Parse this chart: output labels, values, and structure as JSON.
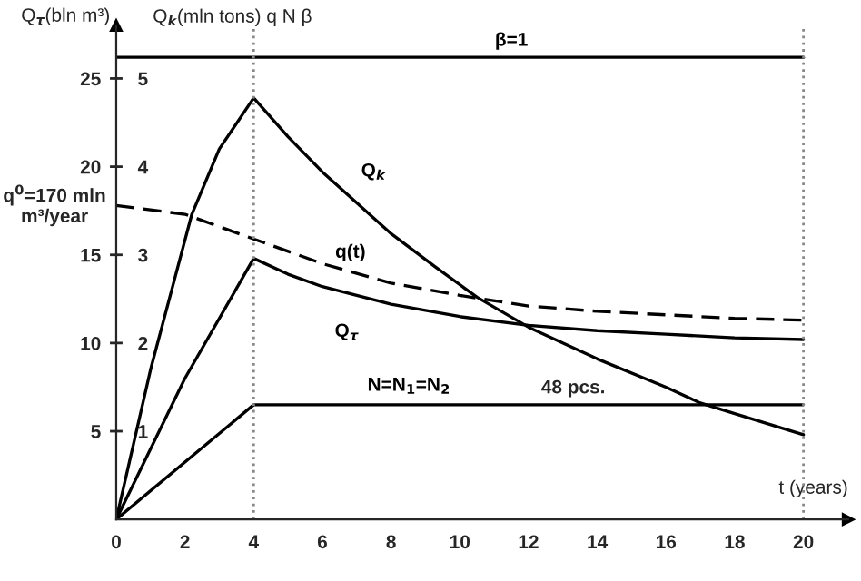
{
  "chart_data": {
    "type": "line",
    "xlabel": "t (years)",
    "ylabel": "Q$_{τ}$(bln m³)",
    "y2label": "Q$_{k}$(mln tons) q N β",
    "xlim": [
      0,
      21.3
    ],
    "xticks": [
      0,
      2,
      4,
      6,
      8,
      10,
      12,
      14,
      16,
      18,
      20
    ],
    "ylim": [
      0,
      28
    ],
    "yticks": [
      5,
      10,
      15,
      20,
      25
    ],
    "y2lim": [
      0,
      5.6
    ],
    "y2ticks": [
      1,
      2,
      3,
      4,
      5
    ],
    "grid": false,
    "marker": "none",
    "series": [
      {
        "name": "Q$_{k}$",
        "color": "#000000",
        "line_style": "solid",
        "x": [
          0,
          1,
          1.75,
          2.2,
          3,
          4,
          5,
          6,
          8,
          9.3,
          10.5,
          12,
          14,
          16,
          17,
          18,
          20
        ],
        "values": [
          0,
          8.5,
          14,
          17.3,
          21,
          23.9,
          21.7,
          19.7,
          16.2,
          14.3,
          12.6,
          10.9,
          9.1,
          7.5,
          6.6,
          6,
          4.8
        ]
      },
      {
        "name": "Q$_{τ}$",
        "color": "#000000",
        "line_style": "solid",
        "x": [
          0,
          2,
          4,
          5,
          6,
          8,
          10,
          12,
          14,
          16,
          18,
          20
        ],
        "values": [
          0,
          8,
          14.8,
          13.9,
          13.2,
          12.2,
          11.5,
          11,
          10.7,
          10.5,
          10.3,
          10.2
        ]
      },
      {
        "name": "q(t)",
        "color": "#000000",
        "line_style": "dashed",
        "x": [
          0,
          2,
          4,
          6,
          8,
          10,
          12,
          14,
          16,
          18,
          20
        ],
        "values": [
          17.8,
          17.3,
          15.9,
          14.5,
          13.4,
          12.7,
          12.1,
          11.8,
          11.6,
          11.4,
          11.3
        ]
      },
      {
        "name": "N=N$_{1}$=N$_{2}$",
        "color": "#000000",
        "line_style": "solid",
        "x": [
          0,
          4,
          20
        ],
        "values": [
          0,
          6.5,
          6.5
        ]
      },
      {
        "name": "β=1",
        "color": "#000000",
        "line_style": "solid",
        "x": [
          0,
          20
        ],
        "values": [
          26.2,
          26.2
        ]
      }
    ],
    "ref_lines": [
      {
        "axis": "x",
        "value": 4,
        "color": "#888888",
        "line_style": "dotted"
      },
      {
        "axis": "x",
        "value": 20,
        "color": "#888888",
        "line_style": "dotted"
      }
    ],
    "annotations": [
      {
        "text": "48 pcs.",
        "x": 13.3,
        "y": 6.5
      },
      {
        "text": "q$^{0}$=170 mln\nm³/year",
        "x": 0,
        "y": 17.8
      }
    ]
  }
}
